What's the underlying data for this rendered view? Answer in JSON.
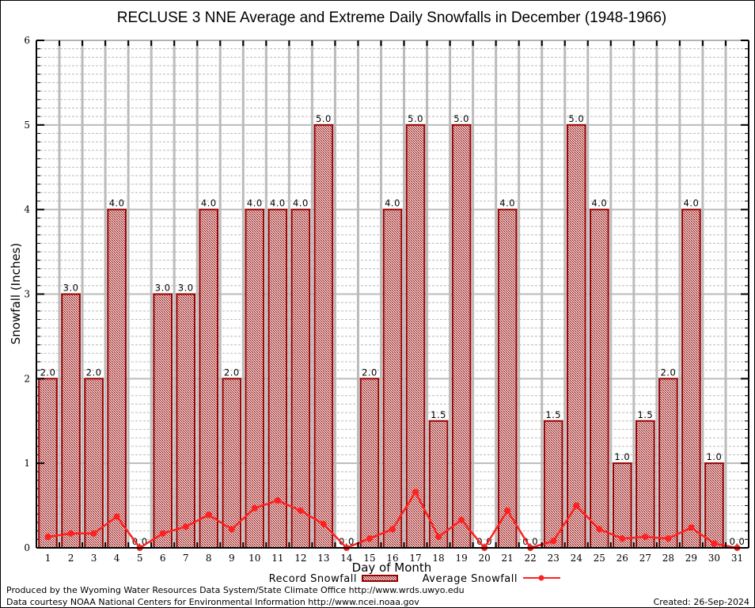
{
  "chart_data": {
    "type": "bar",
    "title": "RECLUSE 3 NNE Average and Extreme Daily Snowfalls in December (1948-1966)",
    "xlabel": "Day of Month",
    "ylabel": "Snowfall (Inches)",
    "ylim": [
      0,
      6
    ],
    "yticks": [
      0,
      1,
      2,
      3,
      4,
      5,
      6
    ],
    "y_minor_step": 0.1,
    "grid": true,
    "legend_position": "bottom-center",
    "categories": [
      "1",
      "2",
      "3",
      "4",
      "5",
      "6",
      "7",
      "8",
      "9",
      "10",
      "11",
      "12",
      "13",
      "14",
      "15",
      "16",
      "17",
      "18",
      "19",
      "20",
      "21",
      "22",
      "23",
      "24",
      "25",
      "26",
      "27",
      "28",
      "29",
      "30",
      "31"
    ],
    "series": [
      {
        "name": "Record Snowfall",
        "kind": "bar",
        "color": "#990000",
        "values": [
          2.0,
          3.0,
          2.0,
          4.0,
          0.0,
          3.0,
          3.0,
          4.0,
          2.0,
          4.0,
          4.0,
          4.0,
          5.0,
          0.0,
          2.0,
          4.0,
          5.0,
          1.5,
          5.0,
          0.0,
          4.0,
          0.0,
          1.5,
          5.0,
          4.0,
          1.0,
          1.5,
          2.0,
          4.0,
          1.0,
          0.0
        ],
        "labels": [
          "2.0",
          "3.0",
          "2.0",
          "4.0",
          "0.0",
          "3.0",
          "3.0",
          "4.0",
          "2.0",
          "4.0",
          "4.0",
          "4.0",
          "5.0",
          "0.0",
          "2.0",
          "4.0",
          "5.0",
          "1.5",
          "5.0",
          "0.0",
          "4.0",
          "0.0",
          "1.5",
          "5.0",
          "4.0",
          "1.0",
          "1.5",
          "2.0",
          "4.0",
          "1.0",
          "0.0"
        ]
      },
      {
        "name": "Average Snowfall",
        "kind": "line",
        "color": "#ff2020",
        "values": [
          0.13,
          0.17,
          0.17,
          0.37,
          0.0,
          0.17,
          0.25,
          0.39,
          0.22,
          0.47,
          0.56,
          0.44,
          0.28,
          0.0,
          0.11,
          0.22,
          0.66,
          0.13,
          0.33,
          0.0,
          0.44,
          0.0,
          0.08,
          0.5,
          0.22,
          0.11,
          0.13,
          0.11,
          0.24,
          0.05,
          0.0
        ]
      }
    ]
  },
  "footer": {
    "produced_by": "Produced by the Wyoming Water Resources Data System/State Climate Office http://www.wrds.uwyo.edu",
    "data_courtesy": "Data courtesy NOAA National Centers for Environmental Information http://www.ncei.noaa.gov",
    "created": "Created:  26-Sep-2024"
  }
}
